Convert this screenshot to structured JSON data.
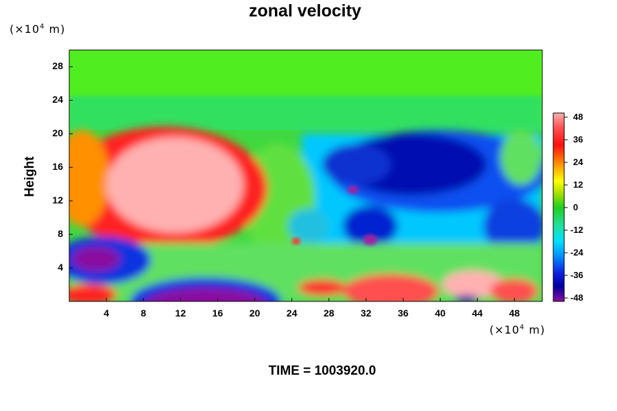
{
  "chart_data": {
    "type": "heatmap",
    "title": "zonal velocity",
    "ylabel": "Height",
    "xlabel": "",
    "y_unit": {
      "prefix": "(×10",
      "exp": "4",
      "suffix": " m)"
    },
    "x_unit": {
      "prefix": "(×10",
      "exp": "4",
      "suffix": " m)"
    },
    "x_ticks": [
      "4",
      "8",
      "12",
      "16",
      "20",
      "24",
      "28",
      "32",
      "36",
      "40",
      "44",
      "48"
    ],
    "y_ticks": [
      "4",
      "8",
      "12",
      "16",
      "20",
      "24",
      "28"
    ],
    "xlim": [
      0,
      51
    ],
    "ylim": [
      0,
      30
    ],
    "colorbar": {
      "ticks": [
        "48",
        "36",
        "24",
        "12",
        "0",
        "-12",
        "-24",
        "-36",
        "-48"
      ],
      "range": [
        -48,
        48
      ]
    },
    "annotation": "TIME = 1003920.0"
  },
  "colors": {
    "strong_positive": "#ffb0b0",
    "positive": "#ff2020",
    "zero": "#40e040",
    "negative": "#1020e0",
    "strong_negative": "#8a10a0"
  }
}
